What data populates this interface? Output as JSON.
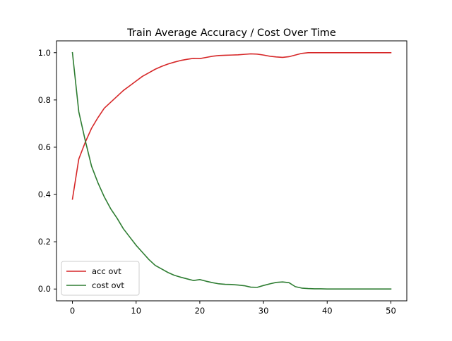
{
  "chart_data": {
    "type": "line",
    "title": "Train Average Accuracy / Cost Over Time",
    "xlabel": "",
    "ylabel": "",
    "xlim": [
      -2.5,
      52.5
    ],
    "ylim": [
      -0.05,
      1.05
    ],
    "xticks": [
      0,
      10,
      20,
      30,
      40,
      50
    ],
    "yticks": [
      0.0,
      0.2,
      0.4,
      0.6,
      0.8,
      1.0
    ],
    "xtick_labels": [
      "0",
      "10",
      "20",
      "30",
      "40",
      "50"
    ],
    "ytick_labels": [
      "0.0",
      "0.2",
      "0.4",
      "0.6",
      "0.8",
      "1.0"
    ],
    "grid": false,
    "legend_position": "lower-left",
    "series": [
      {
        "name": "acc ovt",
        "color": "#d62728",
        "x": [
          0,
          1,
          2,
          3,
          4,
          5,
          6,
          7,
          8,
          9,
          10,
          11,
          12,
          13,
          14,
          15,
          16,
          17,
          18,
          19,
          20,
          21,
          22,
          23,
          24,
          25,
          26,
          27,
          28,
          29,
          30,
          31,
          32,
          33,
          34,
          35,
          36,
          37,
          38,
          39,
          40,
          41,
          42,
          43,
          44,
          45,
          46,
          47,
          48,
          49,
          50
        ],
        "y": [
          0.38,
          0.55,
          0.62,
          0.68,
          0.725,
          0.765,
          0.79,
          0.815,
          0.84,
          0.86,
          0.88,
          0.9,
          0.915,
          0.93,
          0.942,
          0.952,
          0.96,
          0.967,
          0.972,
          0.976,
          0.975,
          0.98,
          0.985,
          0.988,
          0.989,
          0.99,
          0.991,
          0.993,
          0.995,
          0.994,
          0.99,
          0.985,
          0.982,
          0.98,
          0.983,
          0.99,
          0.997,
          1.0,
          1.0,
          1.0,
          1.0,
          1.0,
          1.0,
          1.0,
          1.0,
          1.0,
          1.0,
          1.0,
          1.0,
          1.0,
          1.0
        ]
      },
      {
        "name": "cost ovt",
        "color": "#2e7d32",
        "x": [
          0,
          1,
          2,
          3,
          4,
          5,
          6,
          7,
          8,
          9,
          10,
          11,
          12,
          13,
          14,
          15,
          16,
          17,
          18,
          19,
          20,
          21,
          22,
          23,
          24,
          25,
          26,
          27,
          28,
          29,
          30,
          31,
          32,
          33,
          34,
          35,
          36,
          37,
          38,
          39,
          40,
          41,
          42,
          43,
          44,
          45,
          46,
          47,
          48,
          49,
          50
        ],
        "y": [
          1.0,
          0.75,
          0.63,
          0.52,
          0.45,
          0.39,
          0.34,
          0.3,
          0.255,
          0.22,
          0.185,
          0.155,
          0.125,
          0.1,
          0.085,
          0.07,
          0.058,
          0.05,
          0.043,
          0.036,
          0.04,
          0.033,
          0.027,
          0.022,
          0.02,
          0.019,
          0.017,
          0.014,
          0.008,
          0.007,
          0.015,
          0.022,
          0.028,
          0.03,
          0.027,
          0.01,
          0.004,
          0.002,
          0.001,
          0.001,
          0.0,
          0.0,
          0.0,
          0.0,
          0.0,
          0.0,
          0.0,
          0.0,
          0.0,
          0.0,
          0.0
        ]
      }
    ]
  }
}
